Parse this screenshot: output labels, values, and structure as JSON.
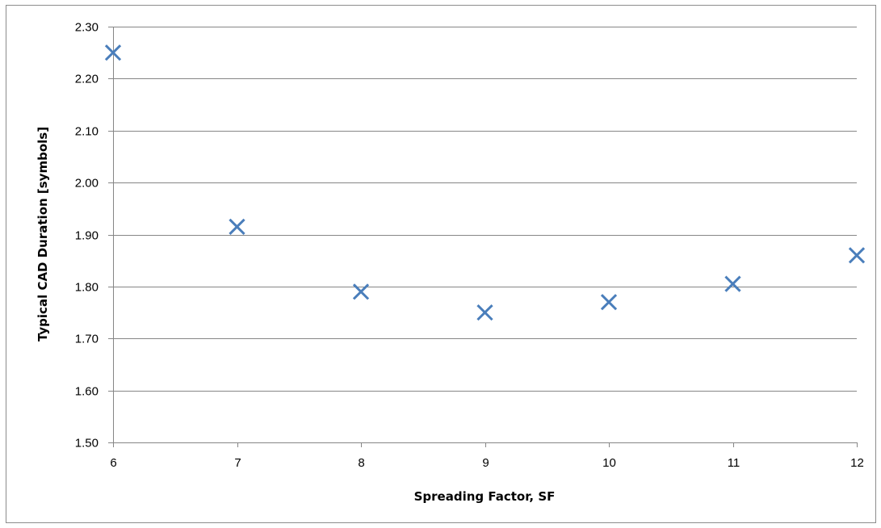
{
  "chart_data": {
    "type": "scatter",
    "title": "",
    "xlabel": "Spreading Factor, SF",
    "ylabel": "Typical  CAD Duration [symbols]",
    "xlim": [
      6,
      12
    ],
    "ylim": [
      1.5,
      2.3
    ],
    "x_ticks": [
      6,
      7,
      8,
      9,
      10,
      11,
      12
    ],
    "y_ticks": [
      1.5,
      1.6,
      1.7,
      1.8,
      1.9,
      2.0,
      2.1,
      2.2,
      2.3
    ],
    "y_tick_labels": [
      "1.50",
      "1.60",
      "1.70",
      "1.80",
      "1.90",
      "2.00",
      "2.10",
      "2.20",
      "2.30"
    ],
    "grid": "horizontal",
    "legend": "none",
    "marker": "x",
    "marker_color": "#4a7ebb",
    "series": [
      {
        "points": [
          {
            "x": 6,
            "y": 2.25
          },
          {
            "x": 7,
            "y": 1.915
          },
          {
            "x": 8,
            "y": 1.79
          },
          {
            "x": 9,
            "y": 1.75
          },
          {
            "x": 10,
            "y": 1.77
          },
          {
            "x": 11,
            "y": 1.805
          },
          {
            "x": 12,
            "y": 1.86
          }
        ]
      }
    ]
  }
}
